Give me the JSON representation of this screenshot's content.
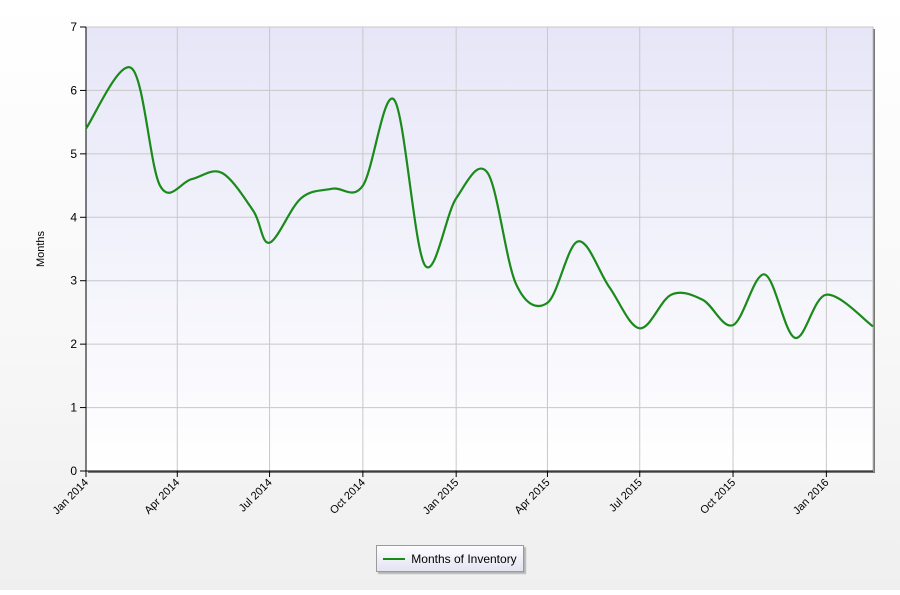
{
  "chart_data": {
    "type": "line",
    "ylabel": "Months",
    "ylim": [
      0,
      7
    ],
    "yticks": [
      "0",
      "1",
      "2",
      "3",
      "4",
      "5",
      "6",
      "7"
    ],
    "xticks": [
      {
        "label": "Jan 2014",
        "date": "2014-01-01"
      },
      {
        "label": "Apr 2014",
        "date": "2014-04-01"
      },
      {
        "label": "Jul 2014",
        "date": "2014-07-01"
      },
      {
        "label": "Oct 2014",
        "date": "2014-10-01"
      },
      {
        "label": "Jan 2015",
        "date": "2015-01-01"
      },
      {
        "label": "Apr 2015",
        "date": "2015-04-01"
      },
      {
        "label": "Jul 2015",
        "date": "2015-07-01"
      },
      {
        "label": "Oct 2015",
        "date": "2015-10-01"
      },
      {
        "label": "Jan 2016",
        "date": "2016-01-01"
      }
    ],
    "xlim": [
      "2014-01-01",
      "2016-02-16"
    ],
    "grid": true,
    "legend_position": "bottom-center",
    "series": [
      {
        "name": "Months of Inventory",
        "color": "#1a8a1a",
        "points": [
          {
            "x": "2014-01-01",
            "y": 5.4
          },
          {
            "x": "2014-02-15",
            "y": 6.35
          },
          {
            "x": "2014-03-15",
            "y": 4.5
          },
          {
            "x": "2014-04-15",
            "y": 4.6
          },
          {
            "x": "2014-05-15",
            "y": 4.7
          },
          {
            "x": "2014-06-15",
            "y": 4.1
          },
          {
            "x": "2014-07-01",
            "y": 3.6
          },
          {
            "x": "2014-08-01",
            "y": 4.3
          },
          {
            "x": "2014-09-01",
            "y": 4.45
          },
          {
            "x": "2014-10-01",
            "y": 4.5
          },
          {
            "x": "2014-11-01",
            "y": 5.85
          },
          {
            "x": "2014-12-01",
            "y": 3.25
          },
          {
            "x": "2015-01-01",
            "y": 4.3
          },
          {
            "x": "2015-02-01",
            "y": 4.7
          },
          {
            "x": "2015-03-01",
            "y": 2.95
          },
          {
            "x": "2015-04-01",
            "y": 2.65
          },
          {
            "x": "2015-05-01",
            "y": 3.62
          },
          {
            "x": "2015-06-01",
            "y": 2.9
          },
          {
            "x": "2015-07-01",
            "y": 2.25
          },
          {
            "x": "2015-08-01",
            "y": 2.78
          },
          {
            "x": "2015-09-01",
            "y": 2.7
          },
          {
            "x": "2015-10-01",
            "y": 2.3
          },
          {
            "x": "2015-11-01",
            "y": 3.1
          },
          {
            "x": "2015-12-01",
            "y": 2.1
          },
          {
            "x": "2016-01-01",
            "y": 2.78
          },
          {
            "x": "2016-02-16",
            "y": 2.28
          }
        ]
      }
    ]
  }
}
